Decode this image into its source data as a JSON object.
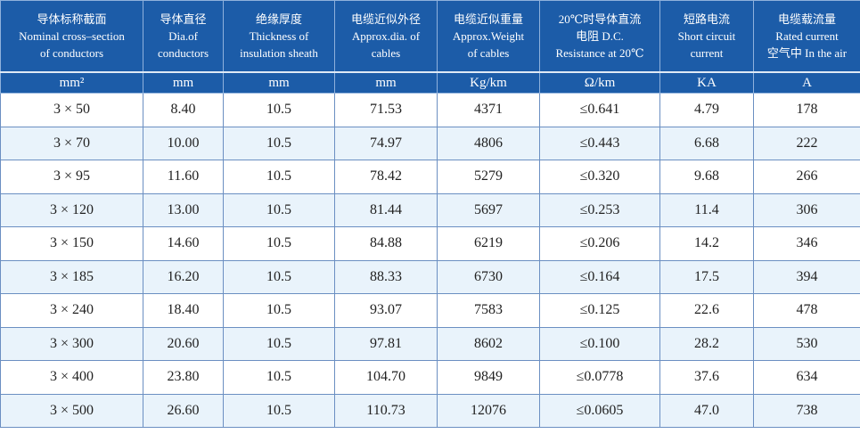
{
  "header": {
    "columns": [
      {
        "lines": [
          "导体标称截面",
          "Nominal cross–section",
          "of conductors"
        ]
      },
      {
        "lines": [
          "导体直径",
          "Dia.of",
          "conductors"
        ]
      },
      {
        "lines": [
          "绝缘厚度",
          "Thickness of",
          "insulation sheath"
        ]
      },
      {
        "lines": [
          "电缆近似外径",
          "Approx.dia. of",
          "cables"
        ]
      },
      {
        "lines": [
          "电缆近似重量",
          "Approx.Weight",
          "of cables"
        ]
      },
      {
        "lines": [
          "20℃时导体直流",
          "电阻 D.C.",
          "Resistance at 20℃"
        ]
      },
      {
        "lines": [
          "短路电流",
          "Short circuit",
          "current"
        ]
      },
      {
        "lines": [
          "电缆载流量",
          "Rated current",
          "空气中 In the air"
        ]
      }
    ],
    "units": [
      "mm²",
      "mm",
      "mm",
      "mm",
      "Kg/km",
      "Ω/km",
      "KA",
      "A"
    ]
  },
  "table": {
    "rows": [
      [
        "3 × 50",
        "8.40",
        "10.5",
        "71.53",
        "4371",
        "≤0.641",
        "4.79",
        "178"
      ],
      [
        "3 × 70",
        "10.00",
        "10.5",
        "74.97",
        "4806",
        "≤0.443",
        "6.68",
        "222"
      ],
      [
        "3 × 95",
        "11.60",
        "10.5",
        "78.42",
        "5279",
        "≤0.320",
        "9.68",
        "266"
      ],
      [
        "3 × 120",
        "13.00",
        "10.5",
        "81.44",
        "5697",
        "≤0.253",
        "11.4",
        "306"
      ],
      [
        "3 × 150",
        "14.60",
        "10.5",
        "84.88",
        "6219",
        "≤0.206",
        "14.2",
        "346"
      ],
      [
        "3 × 185",
        "16.20",
        "10.5",
        "88.33",
        "6730",
        "≤0.164",
        "17.5",
        "394"
      ],
      [
        "3 × 240",
        "18.40",
        "10.5",
        "93.07",
        "7583",
        "≤0.125",
        "22.6",
        "478"
      ],
      [
        "3 × 300",
        "20.60",
        "10.5",
        "97.81",
        "8602",
        "≤0.100",
        "28.2",
        "530"
      ],
      [
        "3 × 400",
        "23.80",
        "10.5",
        "104.70",
        "9849",
        "≤0.0778",
        "37.6",
        "634"
      ],
      [
        "3 × 500",
        "26.60",
        "10.5",
        "110.73",
        "12076",
        "≤0.0605",
        "47.0",
        "738"
      ]
    ]
  }
}
